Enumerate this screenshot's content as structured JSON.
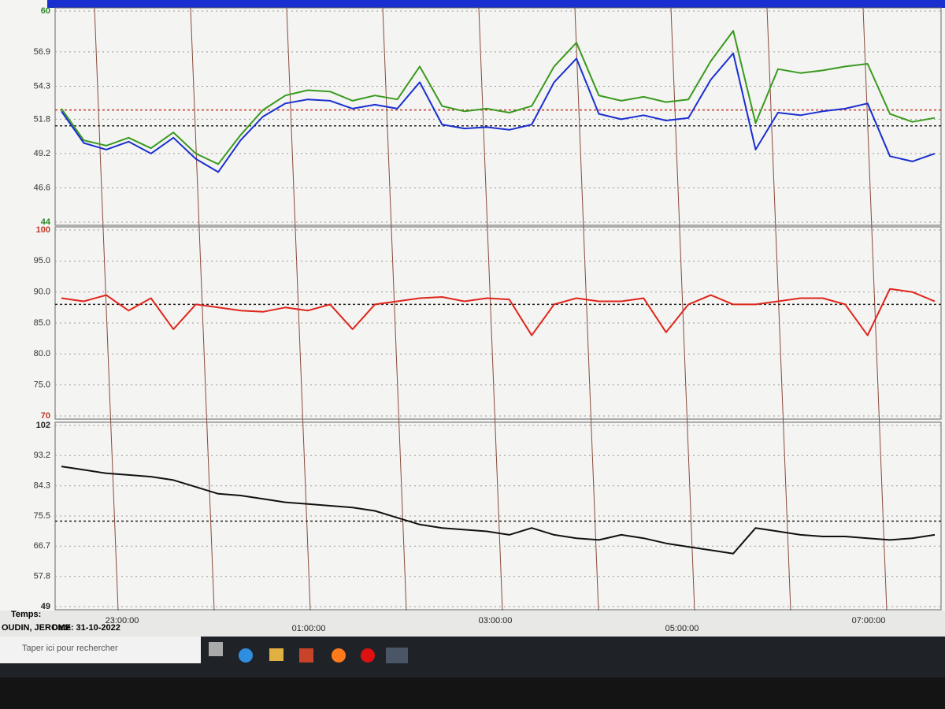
{
  "chart_data": [
    {
      "type": "line",
      "ylim": [
        44,
        60
      ],
      "yticks": [
        44,
        46.6,
        49.2,
        51.8,
        54.3,
        56.9,
        60
      ],
      "tick_color": "#2a8a2a",
      "grid": true,
      "reference_lines": [
        {
          "value": 52.5,
          "color": "#c0392b"
        },
        {
          "value": 51.3,
          "color": "#222"
        }
      ],
      "series": [
        {
          "color": "#3a9a1f",
          "values": [
            52.6,
            50.2,
            49.8,
            50.4,
            49.6,
            50.8,
            49.2,
            48.4,
            50.6,
            52.5,
            53.6,
            54,
            53.9,
            53.2,
            53.6,
            53.3,
            55.8,
            52.8,
            52.4,
            52.6,
            52.3,
            52.8,
            55.8,
            57.6,
            53.6,
            53.2,
            53.5,
            53.1,
            53.3,
            56.2,
            58.5,
            51.5,
            55.6,
            55.3,
            55.5,
            55.8,
            56,
            52.2,
            51.6,
            51.9
          ]
        },
        {
          "color": "#1a2fd0",
          "values": [
            52.4,
            50,
            49.5,
            50.1,
            49.2,
            50.4,
            48.8,
            47.8,
            50.2,
            52,
            53,
            53.3,
            53.2,
            52.6,
            52.9,
            52.6,
            54.6,
            51.4,
            51.1,
            51.2,
            51,
            51.4,
            54.6,
            56.4,
            52.2,
            51.8,
            52.1,
            51.7,
            51.9,
            54.8,
            56.8,
            49.5,
            52.3,
            52.1,
            52.4,
            52.6,
            53,
            49,
            48.6,
            49.2
          ]
        }
      ]
    },
    {
      "type": "line",
      "ylim": [
        70,
        100
      ],
      "yticks": [
        70,
        {
          "value": 75,
          "label": "75.0"
        },
        {
          "value": 80,
          "label": "80.0"
        },
        {
          "value": 85,
          "label": "85.0"
        },
        {
          "value": 90,
          "label": "90.0"
        },
        {
          "value": 95,
          "label": "95.0"
        },
        100
      ],
      "tick_color": "#c0392b",
      "grid": true,
      "reference_lines": [
        {
          "value": 88,
          "color": "#222"
        }
      ],
      "series": [
        {
          "color": "#e0251b",
          "values": [
            89,
            88.5,
            89.5,
            87,
            89,
            84,
            88,
            87.5,
            87,
            86.8,
            87.5,
            87,
            88,
            84,
            88,
            88.5,
            89,
            89.2,
            88.5,
            89,
            88.8,
            83,
            88,
            89,
            88.5,
            88.5,
            89,
            83.5,
            88,
            89.5,
            88,
            88,
            88.5,
            89,
            89,
            88,
            83,
            90.5,
            90,
            88.5
          ]
        }
      ]
    },
    {
      "type": "line",
      "ylim": [
        49,
        102
      ],
      "yticks": [
        49,
        57.8,
        66.7,
        75.5,
        84.3,
        93.2,
        102
      ],
      "tick_color": "#222",
      "grid": true,
      "reference_lines": [
        {
          "value": 74,
          "color": "#222"
        }
      ],
      "series": [
        {
          "color": "#111",
          "values": [
            90,
            89,
            88,
            87.5,
            87,
            86,
            84,
            82,
            81.5,
            80.5,
            79.5,
            79,
            78.5,
            78,
            77,
            75,
            73,
            72,
            71.5,
            71,
            70,
            72,
            70,
            69,
            68.5,
            70,
            69,
            67.5,
            66.5,
            65.5,
            64.5,
            72,
            71,
            70,
            69.5,
            69.5,
            69,
            68.5,
            69,
            70
          ]
        }
      ]
    }
  ],
  "footer": {
    "temps": "Temps:",
    "patient": "OUDIN, JEROME",
    "date": "Date: 31-10-2022",
    "time_labels": [
      "23:00:00",
      "01:00:00",
      "03:00:00",
      "05:00:00",
      "07:00:00"
    ]
  },
  "taskbar": {
    "search": "Taper ici pour rechercher"
  }
}
